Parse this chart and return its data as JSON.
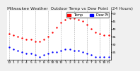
{
  "title": "Milwaukee Weather  Outdoor Temp vs Dew Point  (24 Hours)",
  "bg_color": "#f0f0f0",
  "plot_bg": "#ffffff",
  "time_labels": [
    "12",
    "1",
    "2",
    "3",
    "4",
    "5",
    "6",
    "7",
    "8",
    "9",
    "10",
    "11",
    "12",
    "1",
    "2",
    "3",
    "4",
    "5",
    "6",
    "7",
    "8",
    "9",
    "10",
    "11"
  ],
  "temp_values": [
    37,
    36,
    35,
    34,
    33,
    33,
    32,
    32,
    33,
    35,
    38,
    41,
    44,
    46,
    47,
    47,
    46,
    45,
    43,
    40,
    38,
    37,
    36,
    36
  ],
  "dew_values": [
    28,
    27,
    26,
    25,
    24,
    24,
    23,
    22,
    23,
    24,
    25,
    25,
    26,
    27,
    27,
    26,
    26,
    25,
    24,
    23,
    22,
    22,
    22,
    22
  ],
  "temp_color": "#ff0000",
  "dew_color": "#0000ff",
  "grid_color": "#aaaaaa",
  "grid_positions": [
    0,
    3,
    6,
    9,
    12,
    15,
    18,
    21,
    23
  ],
  "yticks": [
    25,
    30,
    35,
    40,
    45,
    50
  ],
  "ylim": [
    20,
    52
  ],
  "xlim": [
    -0.5,
    23.5
  ],
  "dot_size": 3,
  "title_fontsize": 4.2,
  "tick_fontsize": 3.2,
  "legend_fontsize": 3.5
}
